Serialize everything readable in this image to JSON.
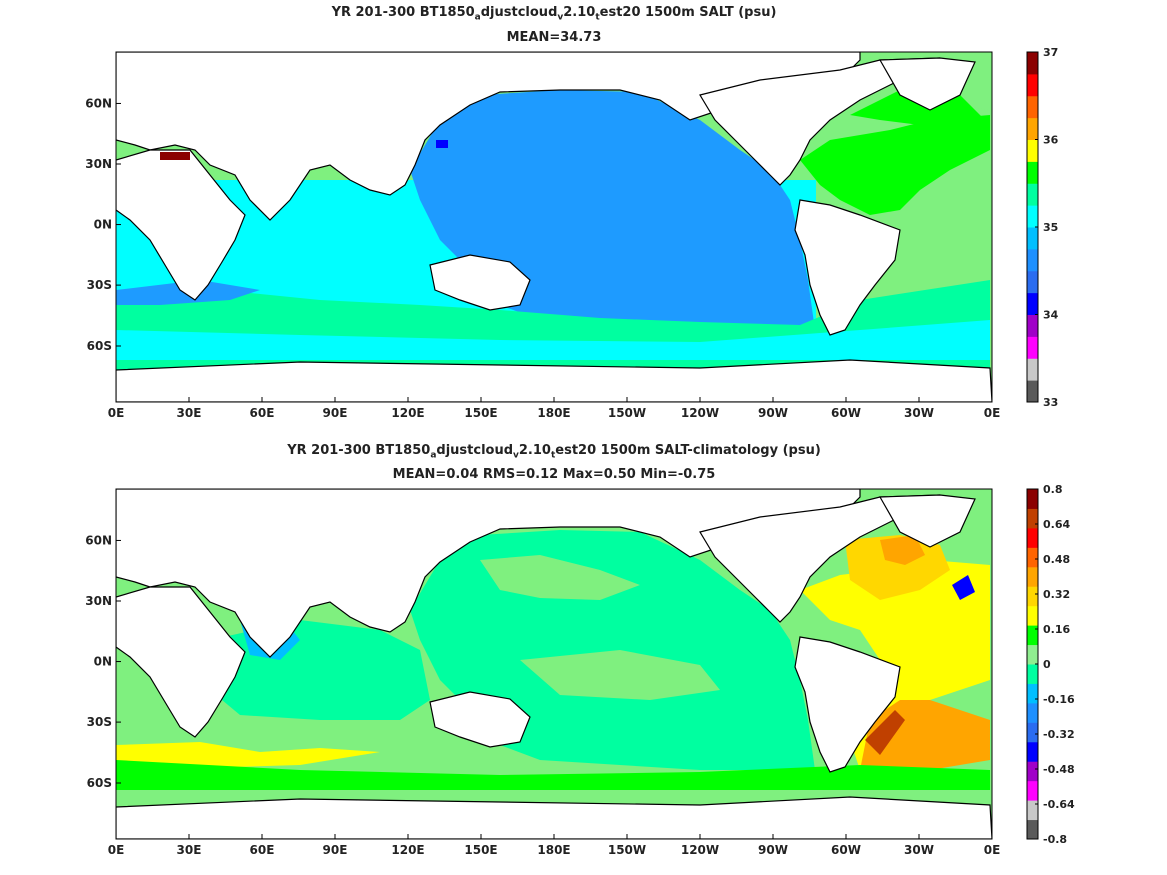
{
  "panel1": {
    "title": {
      "pre": "YR 201-300 BT1850",
      "sub_a": "a",
      "mid1": "djustcloud",
      "sub_v": "v",
      "mid2": "2.10",
      "sub_t": "t",
      "post": "est20 1500m SALT (psu)"
    },
    "subtitle": "MEAN=34.73",
    "colorbar": {
      "labels": [
        "37",
        "36",
        "35",
        "34",
        "33"
      ],
      "colors": [
        "#5a5a5a",
        "#c8c8c8",
        "#ff00ff",
        "#a000c8",
        "#0000ff",
        "#2a6cf0",
        "#1e90ff",
        "#00bfff",
        "#00ffff",
        "#00ffa0",
        "#00ff00",
        "#ffff00",
        "#ffa500",
        "#ff6400",
        "#ff0000",
        "#8b0000"
      ]
    }
  },
  "panel2": {
    "title": {
      "pre": "YR 201-300 BT1850",
      "sub_a": "a",
      "mid1": "djustcloud",
      "sub_v": "v",
      "mid2": "2.10",
      "sub_t": "t",
      "post": "est20 1500m SALT-climatology (psu)"
    },
    "subtitle": "MEAN=0.04   RMS=0.12   Max=0.50   Min=-0.75",
    "colorbar": {
      "labels": [
        "0.8",
        "0.64",
        "0.48",
        "0.32",
        "0.16",
        "0",
        "-0.16",
        "-0.32",
        "-0.48",
        "-0.64",
        "-0.8"
      ],
      "colors": [
        "#5a5a5a",
        "#c8c8c8",
        "#ff00ff",
        "#a000c8",
        "#0000ff",
        "#2a6cf0",
        "#1e90ff",
        "#00bfff",
        "#00ffa0",
        "#90ee90",
        "#00ff00",
        "#ffff00",
        "#ffd700",
        "#ffa500",
        "#ff6400",
        "#ff0000",
        "#c04000",
        "#8b0000"
      ]
    }
  },
  "axes": {
    "lon_labels": [
      "0E",
      "30E",
      "60E",
      "90E",
      "120E",
      "150E",
      "180E",
      "150W",
      "120W",
      "90W",
      "60W",
      "30W",
      "0E"
    ],
    "lat_labels": [
      "60N",
      "30N",
      "0N",
      "30S",
      "60S"
    ]
  },
  "colors": {
    "pacific_p1": "#1e9bff",
    "indian_p1": "#00ffff",
    "atlantic_p1": "#7ff07f",
    "land": "#ffffff",
    "p2_base": "#00ffa0",
    "p2_atl_warm": "#ffd700"
  }
}
